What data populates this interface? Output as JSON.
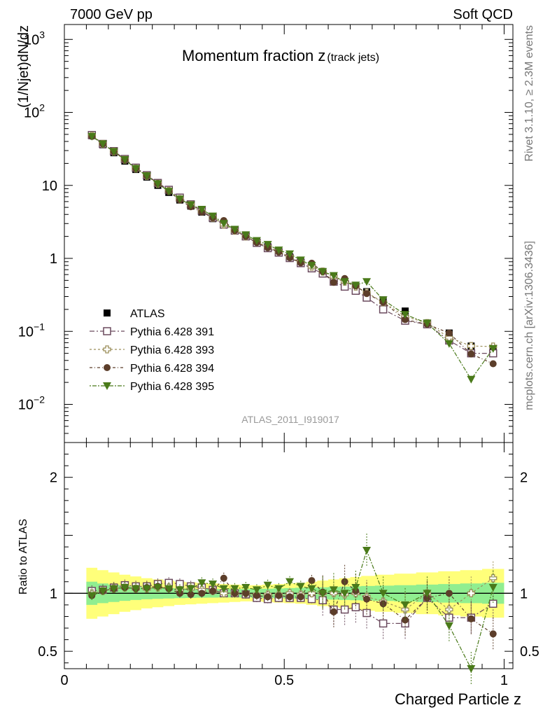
{
  "header": {
    "left": "7000 GeV pp",
    "right": "Soft QCD"
  },
  "side_labels": {
    "rivet": "Rivet 3.1.10, ≥ 2.3M events",
    "mcplots": "mcplots.cern.ch [arXiv:1306.3436]"
  },
  "chart_data": [
    {
      "type": "scatter",
      "panel": "main",
      "title_main": "Momentum fraction z",
      "title_sub": "(track jets)",
      "ylabel": "(1/Njet)dN/dz",
      "log_y": true,
      "ylim": [
        0.003,
        1600
      ],
      "xlim": [
        0,
        1.02
      ],
      "analysis_tag": "ATLAS_2011_I919017",
      "legend_position": "bottom-left",
      "yticks": [
        {
          "label": "10",
          "sup": "3"
        },
        {
          "label": "10",
          "sup": "2"
        },
        {
          "label": "10",
          "sup": ""
        },
        {
          "label": "1",
          "sup": ""
        },
        {
          "label": "10",
          "sup": "−1"
        },
        {
          "label": "10",
          "sup": "−2"
        }
      ],
      "x": [
        0.0625,
        0.0875,
        0.1125,
        0.1375,
        0.1625,
        0.1875,
        0.2125,
        0.2375,
        0.2625,
        0.2875,
        0.3125,
        0.3375,
        0.3625,
        0.3875,
        0.4125,
        0.4375,
        0.4625,
        0.4875,
        0.5125,
        0.5375,
        0.5625,
        0.5875,
        0.6125,
        0.6375,
        0.6625,
        0.6875,
        0.725,
        0.775,
        0.825,
        0.875,
        0.925,
        0.975
      ],
      "series": [
        {
          "name": "ATLAS",
          "values": [
            48,
            36,
            28,
            21.5,
            16.5,
            13,
            10,
            8,
            6.3,
            5.2,
            4.3,
            3.5,
            2.9,
            2.4,
            2.0,
            1.7,
            1.45,
            1.25,
            1.05,
            0.9,
            0.77,
            0.66,
            0.56,
            0.48,
            0.41,
            0.35,
            0.27,
            0.19,
            0.13,
            0.095,
            0.063,
            0.055
          ]
        },
        {
          "name": "Pythia 6.428 391",
          "values": [
            49,
            37,
            29.5,
            23,
            17.5,
            13.8,
            10.8,
            8.7,
            6.8,
            5.5,
            4.5,
            3.6,
            2.9,
            2.4,
            2.0,
            1.63,
            1.38,
            1.2,
            1.01,
            0.86,
            0.73,
            0.62,
            0.48,
            0.41,
            0.36,
            0.29,
            0.2,
            0.14,
            0.125,
            0.075,
            0.05,
            0.05
          ]
        },
        {
          "name": "Pythia 6.428 393",
          "values": [
            48,
            37,
            29,
            22.5,
            17,
            13.5,
            10.5,
            8.4,
            6.5,
            5.4,
            4.4,
            3.6,
            2.9,
            2.4,
            2.0,
            1.68,
            1.44,
            1.24,
            1.05,
            0.89,
            0.77,
            0.66,
            0.56,
            0.48,
            0.41,
            0.34,
            0.25,
            0.16,
            0.13,
            0.082,
            0.063,
            0.062
          ]
        },
        {
          "name": "Pythia 6.428 394",
          "values": [
            47,
            37,
            29,
            22.5,
            17,
            13.6,
            10.6,
            8.3,
            6.3,
            5.1,
            4.3,
            3.6,
            3.3,
            2.4,
            2.0,
            1.65,
            1.4,
            1.22,
            1.02,
            0.87,
            0.86,
            0.66,
            0.47,
            0.53,
            0.42,
            0.33,
            0.25,
            0.145,
            0.125,
            0.095,
            0.049,
            0.036
          ]
        },
        {
          "name": "Pythia 6.428 395",
          "values": [
            47,
            37,
            29,
            22.5,
            17,
            13.5,
            10.5,
            8.3,
            6.5,
            5.4,
            4.7,
            3.8,
            3.0,
            2.5,
            2.1,
            1.75,
            1.55,
            1.3,
            1.15,
            0.95,
            0.8,
            0.66,
            0.58,
            0.48,
            0.43,
            0.48,
            0.27,
            0.17,
            0.13,
            0.068,
            0.022,
            0.058
          ]
        }
      ]
    },
    {
      "type": "scatter",
      "panel": "ratio",
      "ylabel": "Ratio to ATLAS",
      "xlabel": "Charged Particle z",
      "ylim": [
        0.35,
        2.3
      ],
      "xlim": [
        0,
        1.02
      ],
      "yticks": [
        "2",
        "1",
        "0.5"
      ],
      "xticks": [
        "0",
        "0.5",
        "1"
      ],
      "reference_line": 1,
      "band_inner_half_width": [
        0.1,
        0.085,
        0.075,
        0.065,
        0.058,
        0.052,
        0.048,
        0.045,
        0.042,
        0.04,
        0.038,
        0.037,
        0.036,
        0.036,
        0.037,
        0.038,
        0.04,
        0.042,
        0.045,
        0.048,
        0.05,
        0.052,
        0.055,
        0.058,
        0.06,
        0.063,
        0.066,
        0.07,
        0.075,
        0.08,
        0.085,
        0.09
      ],
      "band_outer_half_width": [
        0.22,
        0.2,
        0.18,
        0.16,
        0.145,
        0.13,
        0.12,
        0.11,
        0.1,
        0.095,
        0.09,
        0.085,
        0.08,
        0.075,
        0.07,
        0.07,
        0.075,
        0.08,
        0.085,
        0.09,
        0.1,
        0.11,
        0.12,
        0.13,
        0.14,
        0.15,
        0.16,
        0.17,
        0.18,
        0.19,
        0.2,
        0.21
      ],
      "series": [
        {
          "name": "Pythia 6.428 391",
          "values": [
            1.02,
            1.03,
            1.05,
            1.07,
            1.06,
            1.06,
            1.08,
            1.09,
            1.08,
            1.06,
            1.05,
            1.03,
            1.0,
            1.0,
            0.99,
            0.96,
            0.95,
            0.96,
            0.96,
            0.96,
            0.95,
            0.94,
            0.86,
            0.86,
            0.88,
            0.83,
            0.74,
            0.74,
            0.96,
            0.79,
            0.79,
            0.91
          ]
        },
        {
          "name": "Pythia 6.428 393",
          "values": [
            1.0,
            1.02,
            1.04,
            1.05,
            1.04,
            1.04,
            1.05,
            1.05,
            1.03,
            1.04,
            1.03,
            1.02,
            1.0,
            1.0,
            1.0,
            0.99,
            0.99,
            0.99,
            1.0,
            0.99,
            1.0,
            1.0,
            1.0,
            0.99,
            1.0,
            0.97,
            0.93,
            0.86,
            1.0,
            0.86,
            1.0,
            1.13
          ]
        },
        {
          "name": "Pythia 6.428 394",
          "values": [
            0.98,
            1.02,
            1.04,
            1.05,
            1.04,
            1.05,
            1.06,
            1.04,
            1.0,
            0.99,
            1.0,
            1.02,
            1.13,
            1.0,
            1.0,
            0.98,
            0.97,
            0.98,
            0.97,
            0.97,
            1.11,
            1.01,
            0.84,
            1.1,
            1.02,
            0.95,
            0.91,
            0.77,
            0.96,
            1.0,
            0.78,
            0.65
          ]
        },
        {
          "name": "Pythia 6.428 395",
          "values": [
            0.98,
            1.02,
            1.04,
            1.05,
            1.04,
            1.04,
            1.05,
            1.04,
            1.03,
            1.04,
            1.09,
            1.08,
            1.04,
            1.04,
            1.05,
            1.03,
            1.07,
            1.04,
            1.1,
            1.06,
            1.04,
            1.0,
            1.03,
            1.0,
            1.05,
            1.37,
            1.0,
            0.9,
            1.0,
            0.72,
            0.35,
            1.05
          ]
        }
      ]
    }
  ],
  "styles": {
    "ATLAS": {
      "color": "#000000",
      "marker": "filled-square"
    },
    "Pythia 6.428 391": {
      "color": "#6b4a5e",
      "marker": "open-square",
      "dash": "7,3,2,3"
    },
    "Pythia 6.428 393": {
      "color": "#9c8f5a",
      "marker": "open-cross",
      "dash": "3,3"
    },
    "Pythia 6.428 394": {
      "color": "#5c3e2a",
      "marker": "filled-circle",
      "dash": "4,3,1,3"
    },
    "Pythia 6.428 395": {
      "color": "#4a7a1a",
      "marker": "filled-triangle-down",
      "dash": "2,2,6,2"
    },
    "band_inner_color": "#90ee90",
    "band_outer_color": "#ffff7a"
  }
}
